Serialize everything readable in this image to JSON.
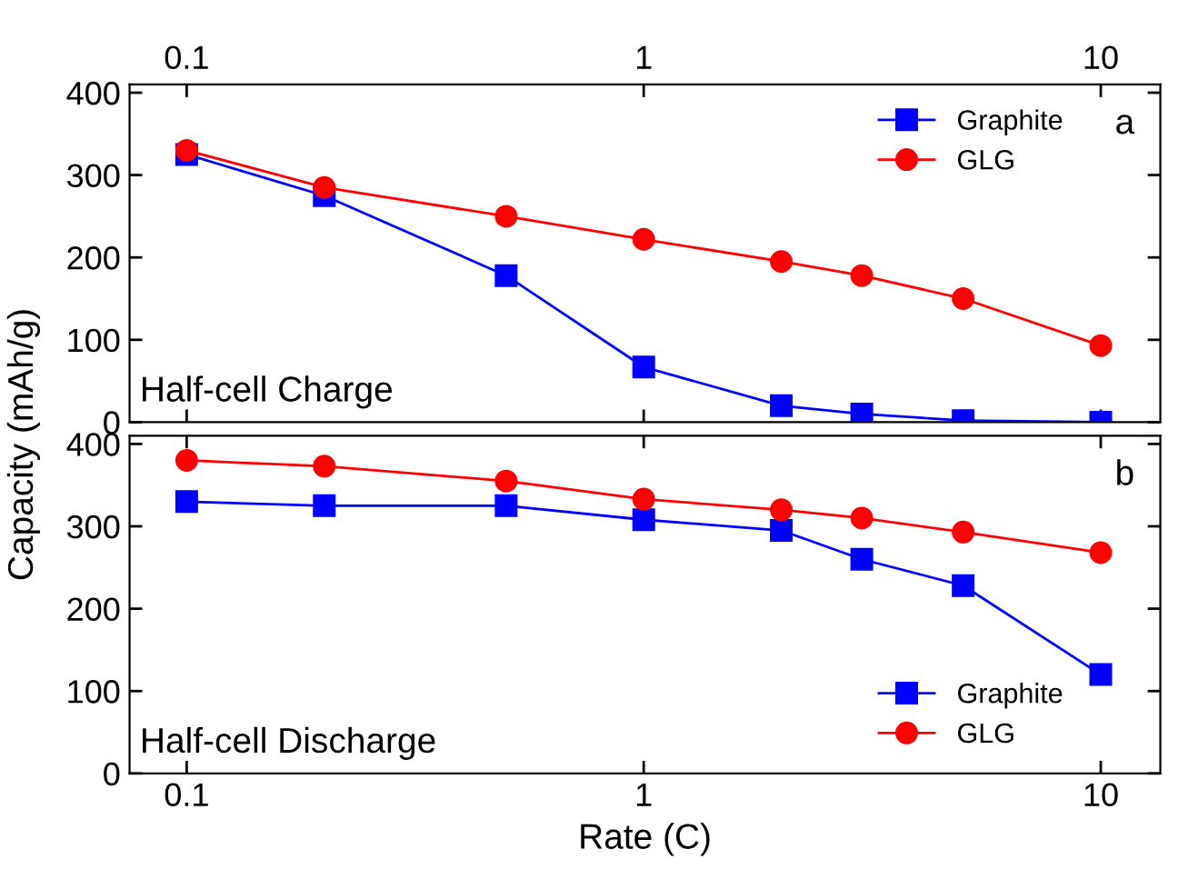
{
  "chart_data": [
    {
      "type": "line",
      "xlim": [
        0.075,
        13.5
      ],
      "xticks": [
        0.1,
        1,
        10
      ],
      "log": "x",
      "ylim": [
        0,
        410
      ],
      "yticks": [
        0,
        100,
        200,
        300,
        400
      ],
      "ylabel": "Capacity (mAh/g)",
      "legend": "top right",
      "grid": false,
      "series": [
        {
          "name": "Graphite",
          "color": "#0000ff",
          "marker": "square",
          "x": [
            0.1,
            0.2,
            0.5,
            1,
            2,
            3,
            5,
            10
          ],
          "values": [
            325,
            275,
            178,
            67,
            20,
            10,
            2,
            0
          ]
        },
        {
          "name": "GLG",
          "color": "#ff0000",
          "marker": "circle",
          "x": [
            0.1,
            0.2,
            0.5,
            1,
            2,
            3,
            5,
            10
          ],
          "values": [
            330,
            285,
            250,
            222,
            195,
            178,
            150,
            93
          ]
        }
      ],
      "annotations": [
        "a",
        "Half-cell Charge"
      ]
    },
    {
      "type": "line",
      "xlim": [
        0.075,
        13.5
      ],
      "xticks": [
        0.1,
        1,
        10
      ],
      "log": "x",
      "ylim": [
        0,
        410
      ],
      "yticks": [
        0,
        100,
        200,
        300,
        400
      ],
      "xlabel": "Rate (C)",
      "legend": "bottom right",
      "grid": false,
      "series": [
        {
          "name": "Graphite",
          "color": "#0000ff",
          "marker": "square",
          "x": [
            0.1,
            0.2,
            0.5,
            1,
            2,
            3,
            5,
            10
          ],
          "values": [
            330,
            325,
            325,
            308,
            295,
            260,
            228,
            120
          ]
        },
        {
          "name": "GLG",
          "color": "#ff0000",
          "marker": "circle",
          "x": [
            0.1,
            0.2,
            0.5,
            1,
            2,
            3,
            5,
            10
          ],
          "values": [
            380,
            373,
            355,
            333,
            320,
            310,
            293,
            268
          ]
        }
      ],
      "annotations": [
        "b",
        "Half-cell Discharge"
      ]
    }
  ]
}
